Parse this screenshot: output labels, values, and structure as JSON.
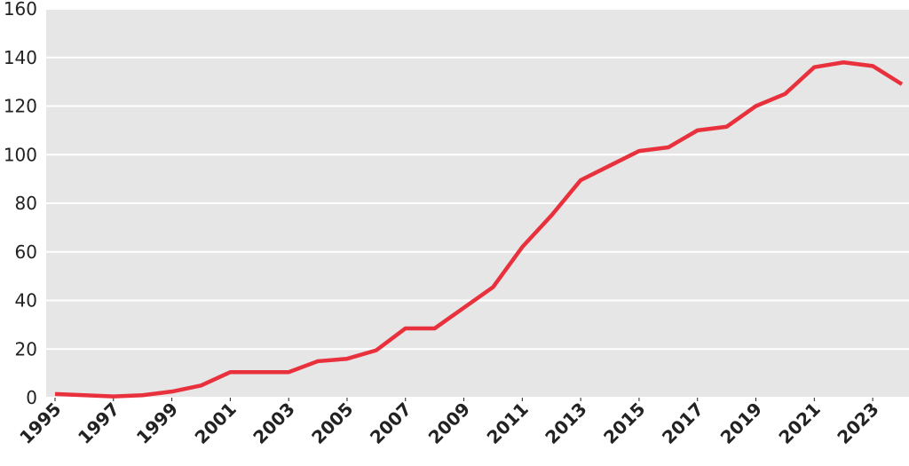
{
  "chart_data": {
    "type": "line",
    "x": [
      1995,
      1996,
      1997,
      1998,
      1999,
      2000,
      2001,
      2002,
      2003,
      2004,
      2005,
      2006,
      2007,
      2008,
      2009,
      2010,
      2011,
      2012,
      2013,
      2014,
      2015,
      2016,
      2017,
      2018,
      2019,
      2020,
      2021,
      2022,
      2023,
      2024
    ],
    "series": [
      {
        "color": "#e8313c",
        "values": [
          1.5,
          1,
          0.5,
          1,
          2.5,
          5,
          10.5,
          10.5,
          10.5,
          15,
          16,
          19.5,
          28.5,
          28.5,
          37,
          45.5,
          62,
          75,
          89.5,
          95.5,
          101.5,
          103,
          110,
          111.5,
          120,
          125,
          136,
          138,
          136.5,
          129
        ]
      }
    ],
    "xlim": [
      1995,
      2024
    ],
    "xticks": [
      1995,
      1997,
      1999,
      2001,
      2003,
      2005,
      2007,
      2009,
      2011,
      2013,
      2015,
      2017,
      2019,
      2021,
      2023
    ],
    "ylim": [
      0,
      160
    ],
    "yticks": [
      0,
      20,
      40,
      60,
      80,
      100,
      120,
      140,
      160
    ],
    "grid": true
  }
}
